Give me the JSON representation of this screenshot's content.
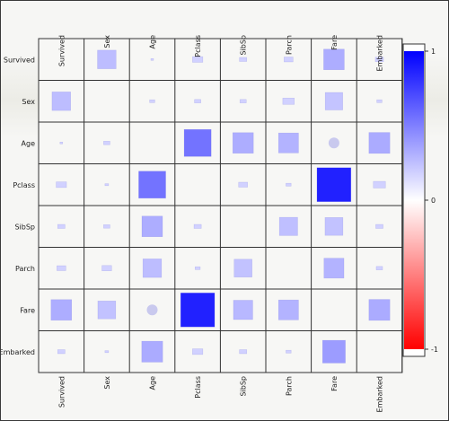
{
  "chart_data": {
    "type": "heatmap",
    "variables": [
      "Survived",
      "Sex",
      "Age",
      "Pclass",
      "SibSp",
      "Parch",
      "Fare",
      "Embarked"
    ],
    "cells": [
      [
        null,
        0.26,
        0,
        0.08,
        0.04,
        0.06,
        0.32,
        0.05
      ],
      [
        0.26,
        null,
        0.02,
        0.03,
        0.03,
        0.1,
        0.23,
        0.02
      ],
      [
        0,
        0.03,
        null,
        0.55,
        0.32,
        0.3,
        -0.01,
        0.33
      ],
      [
        0.08,
        0.01,
        0.55,
        null,
        0.06,
        0.02,
        0.87,
        0.11
      ],
      [
        0.04,
        0.03,
        0.32,
        0.04,
        null,
        0.25,
        0.24,
        0.04
      ],
      [
        0.06,
        0.07,
        0.26,
        0.02,
        0.24,
        null,
        0.3,
        0.03
      ],
      [
        0.32,
        0.24,
        -0.01,
        0.87,
        0.28,
        0.3,
        null,
        0.33
      ],
      [
        0.04,
        0.01,
        0.33,
        0.08,
        0.04,
        0.02,
        0.39,
        null
      ]
    ],
    "circle_cells": [
      [
        2,
        6
      ],
      [
        6,
        2
      ]
    ],
    "colorbar": {
      "min": -1,
      "max": 1,
      "ticks": [
        "1",
        "0",
        "-1"
      ],
      "tick_values": [
        1,
        0,
        -1
      ],
      "colors": {
        "positive": "#0000ff",
        "zero": "#ffffff",
        "negative": "#ff0000"
      }
    }
  }
}
